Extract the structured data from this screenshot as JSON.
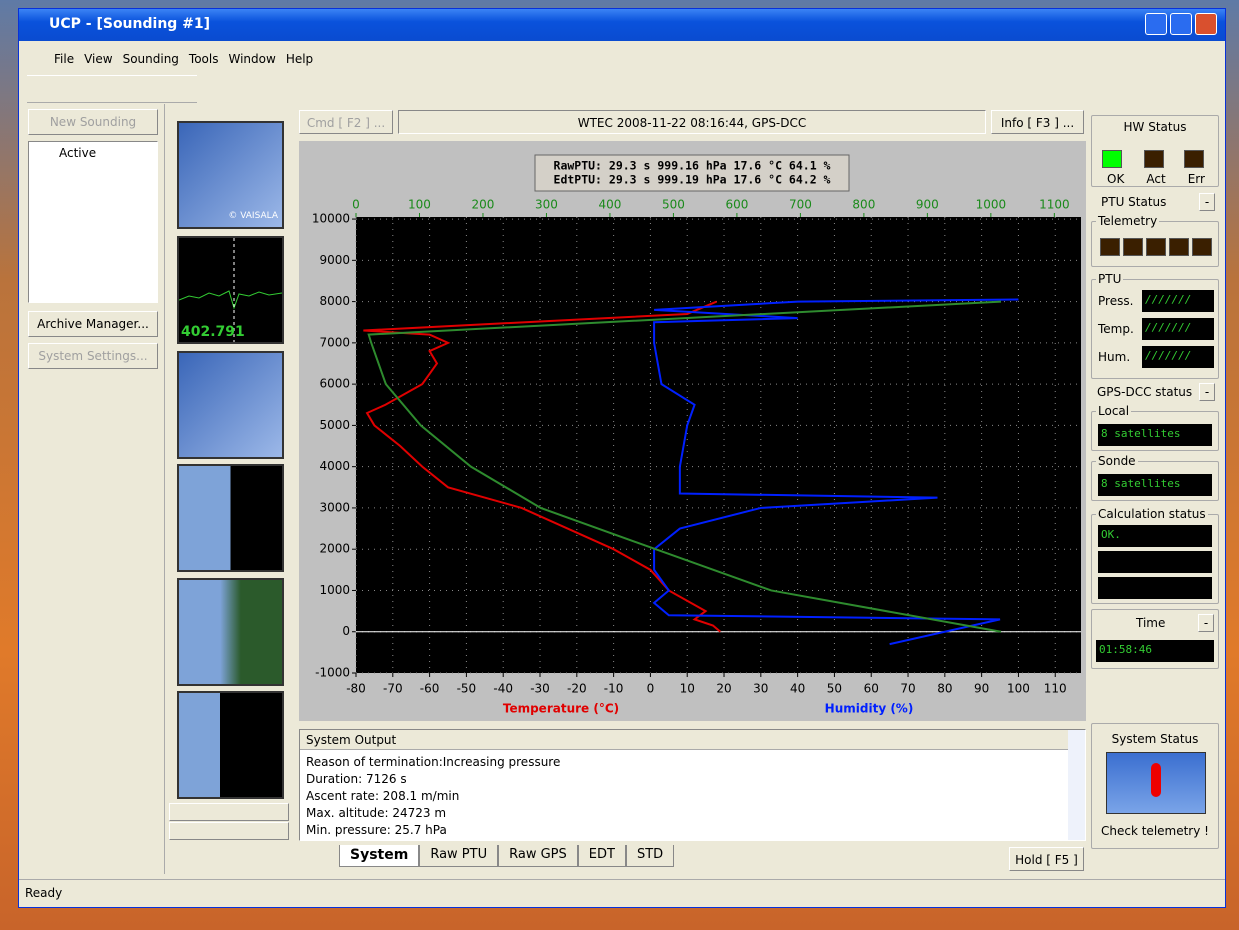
{
  "window": {
    "title": "UCP - [Sounding #1]"
  },
  "menu": [
    "File",
    "View",
    "Sounding",
    "Tools",
    "Window",
    "Help"
  ],
  "left_panel": {
    "new_sounding": "New Sounding",
    "tree_item": "Active",
    "archive_manager": "Archive Manager...",
    "system_settings": "System Settings..."
  },
  "thumbnails": {
    "frequency": "402.791",
    "vaisala": "© VAISALA"
  },
  "header": {
    "cmd": "Cmd [ F2 ] ...",
    "info_text": "WTEC 2008-11-22 08:16:44, GPS-DCC",
    "info_button": "Info [ F3 ] ..."
  },
  "chart": {
    "type": "line",
    "readout": [
      "RawPTU:  29.3 s  999.16 hPa  17.6 °C  64.1 %",
      "EdtPTU:  29.3 s  999.19 hPa  17.6 °C  64.2 %"
    ],
    "x_label": "Temperature (°C)",
    "x_label_2": "Humidity (%)",
    "ylim": [
      -1000,
      10050
    ],
    "yticks": [
      -1000,
      0,
      1000,
      2000,
      3000,
      4000,
      5000,
      6000,
      7000,
      8000,
      9000,
      10000
    ],
    "xlim": [
      -80,
      117
    ],
    "xticks": [
      -80,
      -70,
      -60,
      -50,
      -40,
      -30,
      -20,
      -10,
      0,
      10,
      20,
      30,
      40,
      50,
      60,
      70,
      80,
      90,
      100,
      110
    ],
    "x2lim": [
      0,
      1142
    ],
    "x2ticks": [
      0,
      100,
      200,
      300,
      400,
      500,
      600,
      700,
      800,
      900,
      1000,
      1100
    ],
    "grid": true,
    "series": [
      {
        "color": "#e00000",
        "x": [
          19,
          17,
          12,
          15,
          5,
          0,
          -10,
          -20,
          -35,
          -55,
          -62,
          -68,
          -75,
          -77,
          -72,
          -62,
          -58,
          -60,
          -55,
          -60,
          -78,
          10,
          18
        ],
        "values": [
          0,
          150,
          300,
          500,
          1000,
          1500,
          2000,
          2400,
          3000,
          3500,
          4000,
          4500,
          5000,
          5300,
          5500,
          6000,
          6500,
          6800,
          7000,
          7200,
          7300,
          7700,
          8000
        ]
      },
      {
        "color": "#0020ff",
        "x": [
          65,
          70,
          95,
          5,
          1,
          5,
          1,
          1,
          8,
          30,
          78,
          8,
          8,
          10,
          12,
          3,
          1,
          1,
          40,
          1,
          40,
          100
        ],
        "values": [
          -300,
          -200,
          300,
          400,
          700,
          1000,
          1500,
          2000,
          2500,
          3000,
          3250,
          3350,
          4000,
          5000,
          5500,
          6000,
          7000,
          7500,
          7600,
          7800,
          8000,
          8050
        ]
      },
      {
        "color": "#2e8b2e",
        "axis": "x2",
        "x": [
          1016,
          654,
          472,
          291,
          181,
          102,
          47,
          24,
          20,
          1016
        ],
        "values": [
          0,
          1000,
          2000,
          3000,
          4000,
          5000,
          6000,
          7000,
          7200,
          8000
        ]
      }
    ]
  },
  "system_output": {
    "title": "System Output",
    "lines": [
      "Reason of termination:Increasing pressure",
      "Duration: 7126 s",
      "Ascent rate: 208.1 m/min",
      "Max. altitude: 24723 m",
      "Min. pressure: 25.7 hPa"
    ]
  },
  "tabs": [
    "System",
    "Raw PTU",
    "Raw GPS",
    "EDT",
    "STD"
  ],
  "hold": "Hold [ F5 ]",
  "status": {
    "hw_title": "HW Status",
    "hw_labels": [
      "OK",
      "Act",
      "Err"
    ],
    "ptu_status": "PTU Status",
    "telemetry": "Telemetry",
    "ptu": "PTU",
    "ptu_rows": [
      "Press.",
      "Temp.",
      "Hum."
    ],
    "ptu_display": "///////",
    "gps_status": "GPS-DCC status",
    "local": "Local",
    "local_value": "8 satellites",
    "sonde": "Sonde",
    "sonde_value": "8 satellites",
    "calc": "Calculation status",
    "calc_value": "OK.",
    "time": "Time",
    "time_value": "01:58:46",
    "system_status": "System Status",
    "check": "Check telemetry !",
    "collapse": "-"
  },
  "statusbar": "Ready"
}
